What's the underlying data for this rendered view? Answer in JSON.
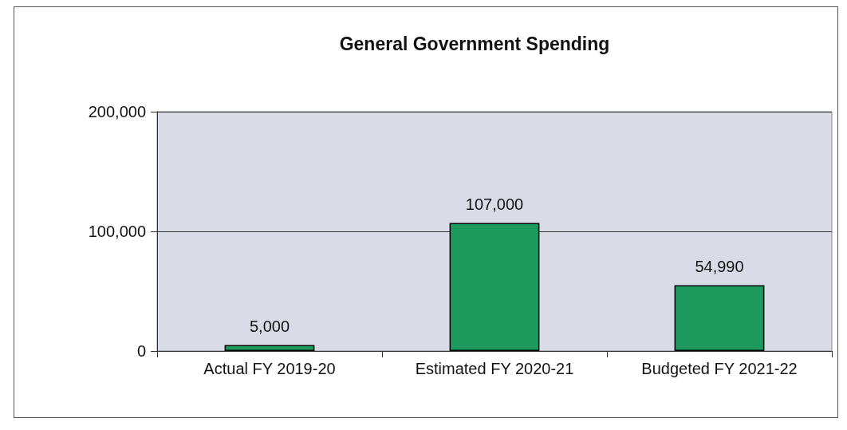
{
  "chart_data": {
    "type": "bar",
    "title": "General Government Spending",
    "categories": [
      "Actual FY 2019-20",
      "Estimated FY 2020-21",
      "Budgeted FY 2021-22"
    ],
    "values": [
      5000,
      107000,
      54990
    ],
    "color": "#1f9a5e",
    "value_labels": [
      "5,000",
      "107,000",
      "54,990"
    ],
    "ylim": [
      0,
      200000
    ],
    "yticks": [
      0,
      {
        "value": 100000,
        "label": "100,000"
      },
      {
        "value": 200000,
        "label": "200,000"
      }
    ],
    "grid": "y"
  }
}
